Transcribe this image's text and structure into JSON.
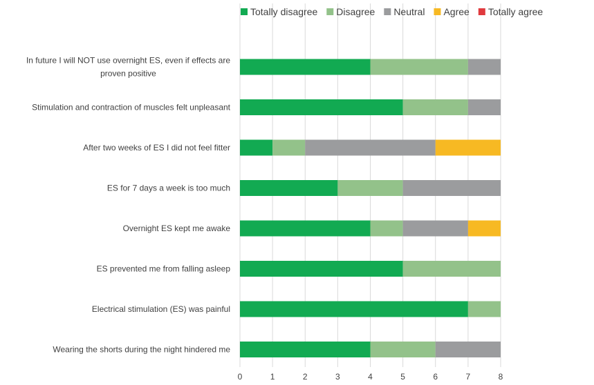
{
  "chart_data": {
    "type": "bar",
    "orientation": "horizontal",
    "stacked": true,
    "categories": [
      "In future I will NOT use overnight ES, even if effects are proven positive",
      "Stimulation and contraction of muscles felt unpleasant",
      "After two weeks of ES I did not feel fitter",
      "ES for 7 days a week is too much",
      "Overnight ES kept me awake",
      "ES prevented me from falling asleep",
      "Electrical stimulation (ES) was painful",
      "Wearing the shorts during the night hindered me"
    ],
    "category_lines": [
      [
        "In future I will NOT use overnight ES, even if effects are",
        "proven positive"
      ],
      [
        "Stimulation and contraction of muscles felt unpleasant"
      ],
      [
        "After two weeks of ES I did not feel fitter"
      ],
      [
        "ES for 7 days a week is too much"
      ],
      [
        "Overnight ES kept me awake"
      ],
      [
        "ES prevented me from falling asleep"
      ],
      [
        "Electrical stimulation (ES) was painful"
      ],
      [
        "Wearing the shorts during the night hindered me"
      ]
    ],
    "series": [
      {
        "name": "Totally disagree",
        "color": "#12aa52",
        "values": [
          4,
          5,
          1,
          3,
          4,
          5,
          7,
          4
        ]
      },
      {
        "name": "Disagree",
        "color": "#93c28a",
        "values": [
          3,
          2,
          1,
          2,
          1,
          3,
          1,
          2
        ]
      },
      {
        "name": "Neutral",
        "color": "#9b9c9e",
        "values": [
          1,
          1,
          4,
          3,
          2,
          0,
          0,
          2
        ]
      },
      {
        "name": "Agree",
        "color": "#f7b923",
        "values": [
          0,
          0,
          2,
          0,
          1,
          0,
          0,
          0
        ]
      },
      {
        "name": "Totally agree",
        "color": "#e03a3e",
        "values": [
          0,
          0,
          0,
          0,
          0,
          0,
          0,
          0
        ]
      }
    ],
    "xlim": [
      0,
      8
    ],
    "xticks": [
      "0",
      "1",
      "2",
      "3",
      "4",
      "5",
      "6",
      "7",
      "8"
    ],
    "grid": true,
    "legend_position": "top"
  }
}
